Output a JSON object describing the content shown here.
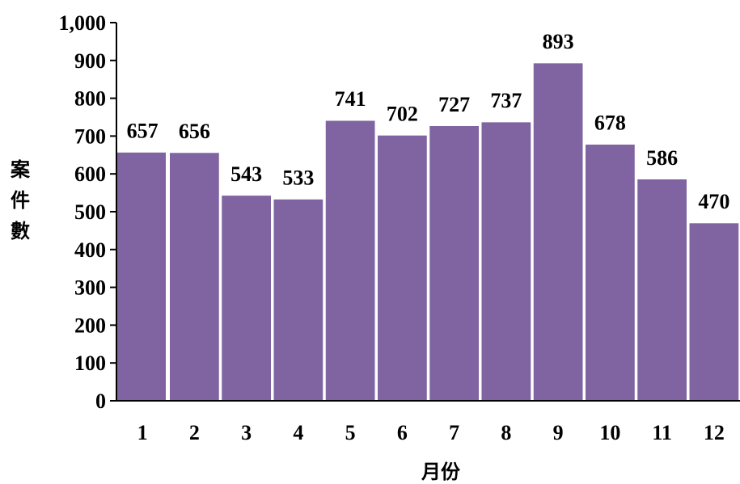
{
  "chart_data": {
    "type": "bar",
    "categories": [
      "1",
      "2",
      "3",
      "4",
      "5",
      "6",
      "7",
      "8",
      "9",
      "10",
      "11",
      "12"
    ],
    "values": [
      657,
      656,
      543,
      533,
      741,
      702,
      727,
      737,
      893,
      678,
      586,
      470
    ],
    "xlabel": "月份",
    "ylabel": "案件數",
    "ylim": [
      0,
      1000
    ],
    "yticks": [
      "0",
      "100",
      "200",
      "300",
      "400",
      "500",
      "600",
      "700",
      "800",
      "900",
      "1,000"
    ],
    "bar_color": "#8064a2",
    "grid": false,
    "data_labels": true
  }
}
